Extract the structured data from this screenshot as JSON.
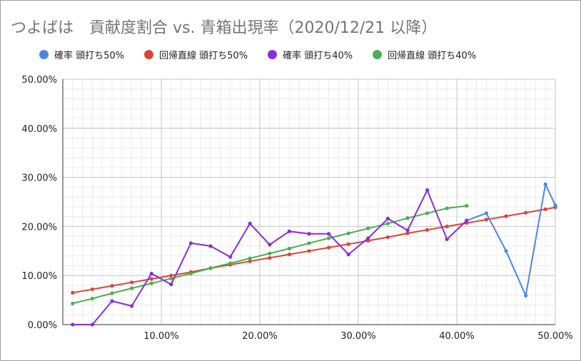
{
  "chart_data": {
    "type": "line",
    "title": "つよばは　貢献度割合 vs. 青箱出現率（2020/12/21 以降）",
    "xlim": [
      0,
      0.5
    ],
    "ylim": [
      0,
      0.5
    ],
    "x_ticks": [
      0.1,
      0.2,
      0.3,
      0.4,
      0.5
    ],
    "x_tick_labels": [
      "10.00%",
      "20.00%",
      "30.00%",
      "40.00%",
      "50.00%"
    ],
    "y_ticks": [
      0,
      0.1,
      0.2,
      0.3,
      0.4,
      0.5
    ],
    "y_tick_labels": [
      "0.00%",
      "10.00%",
      "20.00%",
      "30.00%",
      "40.00%",
      "50.00%"
    ],
    "grid": true,
    "legend_position": "top",
    "series": [
      {
        "name": "確率 頭打ち50%",
        "color": "#4a86e8",
        "x": [
          0.41,
          0.43,
          0.45,
          0.47,
          0.49,
          0.5
        ],
        "y": [
          0.212,
          0.227,
          0.15,
          0.059,
          0.286,
          0.243
        ]
      },
      {
        "name": "回帰直線 頭打ち50%",
        "color": "#db4437",
        "x": [
          0.01,
          0.03,
          0.05,
          0.07,
          0.09,
          0.11,
          0.13,
          0.15,
          0.17,
          0.19,
          0.21,
          0.23,
          0.25,
          0.27,
          0.29,
          0.31,
          0.33,
          0.35,
          0.37,
          0.39,
          0.41,
          0.43,
          0.45,
          0.47,
          0.49,
          0.5
        ],
        "y": [
          0.065,
          0.072,
          0.079,
          0.086,
          0.093,
          0.1,
          0.107,
          0.115,
          0.122,
          0.129,
          0.136,
          0.143,
          0.15,
          0.157,
          0.164,
          0.171,
          0.178,
          0.186,
          0.193,
          0.2,
          0.207,
          0.214,
          0.221,
          0.228,
          0.235,
          0.239
        ]
      },
      {
        "name": "確率 頭打ち40%",
        "color": "#8a2be2",
        "x": [
          0.01,
          0.03,
          0.05,
          0.07,
          0.09,
          0.11,
          0.13,
          0.15,
          0.17,
          0.19,
          0.21,
          0.23,
          0.25,
          0.27,
          0.29,
          0.31,
          0.33,
          0.35,
          0.37,
          0.39,
          0.41
        ],
        "y": [
          0.0,
          0.0,
          0.048,
          0.038,
          0.104,
          0.082,
          0.166,
          0.16,
          0.138,
          0.206,
          0.163,
          0.19,
          0.185,
          0.185,
          0.143,
          0.176,
          0.216,
          0.192,
          0.274,
          0.174,
          0.212
        ]
      },
      {
        "name": "回帰直線 頭打ち40%",
        "color": "#4caf50",
        "x": [
          0.01,
          0.03,
          0.05,
          0.07,
          0.09,
          0.11,
          0.13,
          0.15,
          0.17,
          0.19,
          0.21,
          0.23,
          0.25,
          0.27,
          0.29,
          0.31,
          0.33,
          0.35,
          0.37,
          0.39,
          0.41
        ],
        "y": [
          0.043,
          0.053,
          0.064,
          0.074,
          0.084,
          0.094,
          0.104,
          0.115,
          0.125,
          0.135,
          0.145,
          0.155,
          0.166,
          0.176,
          0.186,
          0.196,
          0.206,
          0.217,
          0.227,
          0.237,
          0.242
        ]
      }
    ]
  }
}
